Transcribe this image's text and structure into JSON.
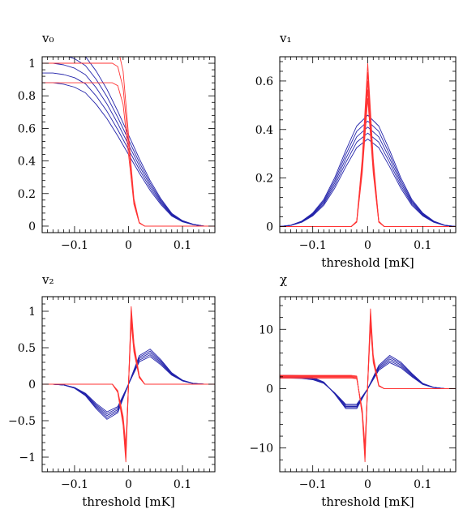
{
  "chart_data": [
    {
      "type": "line",
      "title": "v₀",
      "xlabel": "",
      "ylabel": "",
      "xlim": [
        -0.16,
        0.16
      ],
      "ylim": [
        -0.04,
        1.04
      ],
      "x_ticks": [
        -0.1,
        0,
        0.1
      ],
      "x_tick_labels": [
        "−0.1",
        "0",
        "0.1"
      ],
      "y_ticks": [
        0,
        0.2,
        0.4,
        0.6,
        0.8,
        1
      ],
      "y_tick_labels": [
        "0",
        "0.2",
        "0.4",
        "0.6",
        "0.8",
        "1"
      ],
      "grid": false,
      "series": [
        {
          "color": "#2222aa",
          "band_width": 5,
          "x": [
            -0.16,
            -0.14,
            -0.12,
            -0.1,
            -0.08,
            -0.06,
            -0.04,
            -0.02,
            0,
            0.02,
            0.04,
            0.06,
            0.08,
            0.1,
            0.12,
            0.14,
            0.16
          ],
          "values": [
            1,
            1,
            0.99,
            0.97,
            0.93,
            0.85,
            0.75,
            0.63,
            0.5,
            0.37,
            0.25,
            0.15,
            0.07,
            0.03,
            0.01,
            0,
            0
          ]
        },
        {
          "color": "#ff3333",
          "band_width": 3,
          "x": [
            -0.16,
            -0.03,
            -0.02,
            -0.01,
            0,
            0.01,
            0.02,
            0.03,
            0.16
          ],
          "values": [
            1,
            1,
            0.98,
            0.85,
            0.5,
            0.15,
            0.02,
            0,
            0
          ]
        }
      ]
    },
    {
      "type": "line",
      "title": "v₁",
      "xlabel": "threshold [mK]",
      "ylabel": "",
      "xlim": [
        -0.16,
        0.16
      ],
      "ylim": [
        -0.025,
        0.7
      ],
      "x_ticks": [
        -0.1,
        0,
        0.1
      ],
      "x_tick_labels": [
        "−0.1",
        "0",
        "0.1"
      ],
      "y_ticks": [
        0,
        0.2,
        0.4,
        0.6
      ],
      "y_tick_labels": [
        "0",
        "0.2",
        "0.4",
        "0.6"
      ],
      "grid": false,
      "series": [
        {
          "color": "#2222aa",
          "band_width": 5,
          "x": [
            -0.16,
            -0.14,
            -0.12,
            -0.1,
            -0.08,
            -0.06,
            -0.04,
            -0.02,
            0,
            0.02,
            0.04,
            0.06,
            0.08,
            0.1,
            0.12,
            0.14,
            0.16
          ],
          "values": [
            0,
            0.005,
            0.02,
            0.05,
            0.1,
            0.18,
            0.28,
            0.37,
            0.41,
            0.37,
            0.28,
            0.18,
            0.1,
            0.05,
            0.02,
            0.005,
            0
          ]
        },
        {
          "color": "#ff3333",
          "band_width": 5,
          "x": [
            -0.16,
            -0.03,
            -0.02,
            -0.01,
            0,
            0.01,
            0.02,
            0.03,
            0.16
          ],
          "values": [
            0,
            0,
            0.02,
            0.25,
            0.6,
            0.25,
            0.02,
            0,
            0
          ]
        }
      ]
    },
    {
      "type": "line",
      "title": "v₂",
      "xlabel": "threshold [mK]",
      "ylabel": "",
      "xlim": [
        -0.16,
        0.16
      ],
      "ylim": [
        -1.2,
        1.2
      ],
      "x_ticks": [
        -0.1,
        0,
        0.1
      ],
      "x_tick_labels": [
        "−0.1",
        "0",
        "0.1"
      ],
      "y_ticks": [
        -1,
        -0.5,
        0,
        0.5,
        1
      ],
      "y_tick_labels": [
        "−1",
        "−0.5",
        "0",
        "0.5",
        "1"
      ],
      "grid": false,
      "series": [
        {
          "color": "#2222aa",
          "band_width": 5,
          "x": [
            -0.16,
            -0.14,
            -0.12,
            -0.1,
            -0.08,
            -0.06,
            -0.04,
            -0.02,
            0,
            0.02,
            0.04,
            0.06,
            0.08,
            0.1,
            0.12,
            0.14,
            0.16
          ],
          "values": [
            0,
            0,
            -0.01,
            -0.05,
            -0.14,
            -0.3,
            -0.43,
            -0.35,
            0,
            0.35,
            0.43,
            0.3,
            0.14,
            0.05,
            0.01,
            0,
            0
          ]
        },
        {
          "color": "#ff3333",
          "band_width": 5,
          "x": [
            -0.16,
            -0.03,
            -0.02,
            -0.01,
            -0.005,
            0,
            0.005,
            0.01,
            0.02,
            0.03,
            0.16
          ],
          "values": [
            0,
            0,
            -0.1,
            -0.5,
            -0.95,
            0,
            0.95,
            0.5,
            0.1,
            0,
            0
          ]
        }
      ]
    },
    {
      "type": "line",
      "title": "χ",
      "xlabel": "threshold [mK]",
      "ylabel": "",
      "xlim": [
        -0.16,
        0.16
      ],
      "ylim": [
        -14,
        15.5
      ],
      "x_ticks": [
        -0.1,
        0,
        0.1
      ],
      "x_tick_labels": [
        "−0.1",
        "0",
        "0.1"
      ],
      "y_ticks": [
        -10,
        0,
        10
      ],
      "y_tick_labels": [
        "−10",
        "0",
        "10"
      ],
      "grid": false,
      "series": [
        {
          "color": "#2222aa",
          "band_width": 5,
          "x": [
            -0.16,
            -0.14,
            -0.12,
            -0.1,
            -0.08,
            -0.06,
            -0.04,
            -0.02,
            0,
            0.02,
            0.04,
            0.06,
            0.08,
            0.1,
            0.12,
            0.14,
            0.16
          ],
          "values": [
            2,
            2,
            1.95,
            1.7,
            1,
            -0.8,
            -3,
            -3,
            0,
            3.5,
            5,
            4,
            2.3,
            0.8,
            0.2,
            0,
            0
          ]
        },
        {
          "color": "#ff3333",
          "band_width": 5,
          "x": [
            -0.16,
            -0.03,
            -0.02,
            -0.01,
            -0.005,
            0,
            0.005,
            0.01,
            0.02,
            0.03,
            0.16
          ],
          "values": [
            2,
            2,
            1.9,
            -4,
            -11,
            1,
            12,
            5,
            0.5,
            0,
            0
          ]
        }
      ]
    }
  ]
}
